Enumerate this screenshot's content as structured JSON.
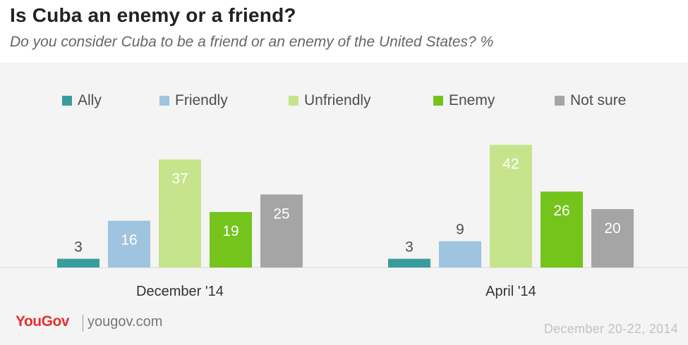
{
  "header": {
    "title": "Is Cuba an enemy or a friend?",
    "subtitle": "Do you consider Cuba to be a friend or an enemy of the United States? %"
  },
  "legend": [
    {
      "label": "Ally",
      "color": "#3a9c9c"
    },
    {
      "label": "Friendly",
      "color": "#9ec4df"
    },
    {
      "label": "Unfriendly",
      "color": "#c6e48c"
    },
    {
      "label": "Enemy",
      "color": "#74c41c"
    },
    {
      "label": "Not sure",
      "color": "#a5a5a5"
    }
  ],
  "chart_data": {
    "type": "bar",
    "categories": [
      "December '14",
      "April '14"
    ],
    "series": [
      {
        "name": "Ally",
        "values": [
          3,
          3
        ]
      },
      {
        "name": "Friendly",
        "values": [
          16,
          9
        ]
      },
      {
        "name": "Unfriendly",
        "values": [
          37,
          42
        ]
      },
      {
        "name": "Enemy",
        "values": [
          19,
          26
        ]
      },
      {
        "name": "Not sure",
        "values": [
          25,
          20
        ]
      }
    ],
    "title": "Is Cuba an enemy or a friend?",
    "subtitle": "Do you consider Cuba to be a friend or an enemy of the United States? %",
    "ylim": [
      0,
      50
    ],
    "grid": false,
    "legend_position": "top"
  },
  "footer": {
    "logo": "YouGov",
    "site": "yougov.com",
    "date": "December 20-22, 2014"
  }
}
